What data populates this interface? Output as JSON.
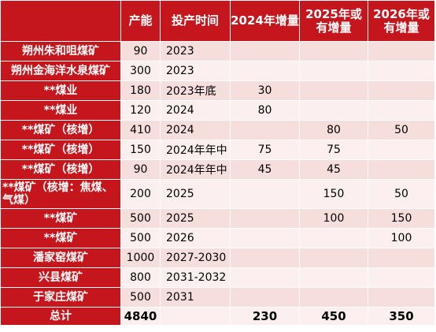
{
  "header": {
    "name": "",
    "capacity": "产能",
    "start_time": "投产时间",
    "inc_2024": "2024年增量",
    "inc_2025": "2025年或有增量",
    "inc_2026": "2026年或有增量"
  },
  "rows": [
    {
      "name": "朔州朱和咀煤矿",
      "capacity": "90",
      "start": "2023",
      "inc2024": "",
      "inc2025": "",
      "inc2026": ""
    },
    {
      "name": "朔州金海洋水泉煤矿",
      "capacity": "300",
      "start": "2023",
      "inc2024": "",
      "inc2025": "",
      "inc2026": ""
    },
    {
      "name": "**煤业",
      "capacity": "180",
      "start": "2023年底",
      "inc2024": "30",
      "inc2025": "",
      "inc2026": ""
    },
    {
      "name": "**煤业",
      "capacity": "120",
      "start": "2024",
      "inc2024": "80",
      "inc2025": "",
      "inc2026": ""
    },
    {
      "name": "**煤矿（核增）",
      "capacity": "410",
      "start": "2024",
      "inc2024": "",
      "inc2025": "80",
      "inc2026": "50"
    },
    {
      "name": "**煤矿（核增）",
      "capacity": "150",
      "start": "2024年年中",
      "inc2024": "75",
      "inc2025": "75",
      "inc2026": ""
    },
    {
      "name": "**煤矿（核增）",
      "capacity": "90",
      "start": "2024年年中",
      "inc2024": "45",
      "inc2025": "45",
      "inc2026": ""
    },
    {
      "name": "**煤矿（核增：焦煤、气煤）",
      "capacity": "200",
      "start": "2025",
      "inc2024": "",
      "inc2025": "150",
      "inc2026": "50"
    },
    {
      "name": "**煤矿",
      "capacity": "500",
      "start": "2025",
      "inc2024": "",
      "inc2025": "100",
      "inc2026": "150"
    },
    {
      "name": "**煤矿",
      "capacity": "500",
      "start": "2026",
      "inc2024": "",
      "inc2025": "",
      "inc2026": "100"
    },
    {
      "name": "潘家窑煤矿",
      "capacity": "1000",
      "start": "2027-2030",
      "inc2024": "",
      "inc2025": "",
      "inc2026": ""
    },
    {
      "name": "兴县煤矿",
      "capacity": "800",
      "start": "2031-2032",
      "inc2024": "",
      "inc2025": "",
      "inc2026": ""
    },
    {
      "name": "于家庄煤矿",
      "capacity": "500",
      "start": "2031",
      "inc2024": "",
      "inc2025": "",
      "inc2026": ""
    }
  ],
  "total": {
    "name": "总计",
    "capacity": "4840",
    "start": "",
    "inc2024": "230",
    "inc2025": "450",
    "inc2026": "350"
  },
  "colors": {
    "header_red": "#c4161c",
    "row_pink_dark": "#f6dedc",
    "row_pink_light": "#fbf0ef"
  }
}
